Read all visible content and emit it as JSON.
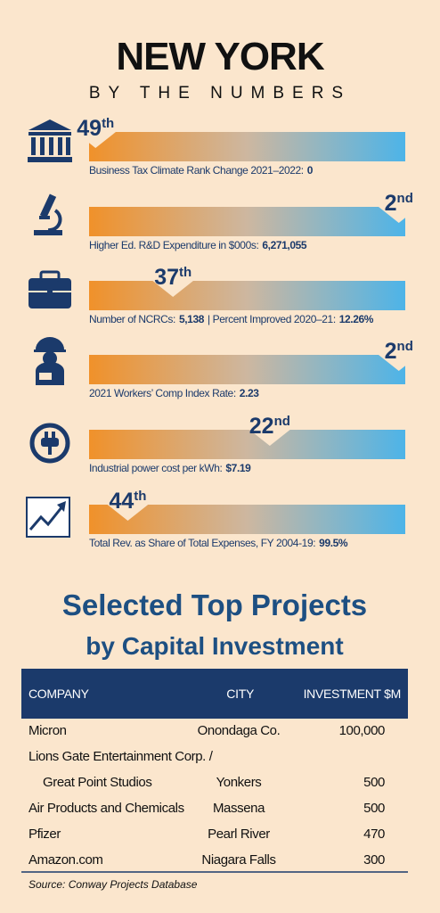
{
  "header": {
    "title": "NEW YORK",
    "subtitle": "BY THE NUMBERS"
  },
  "stats": [
    {
      "rank": 49,
      "suffix": "th",
      "label": "Business Tax Climate Rank Change 2021–2022:",
      "value": "0"
    },
    {
      "rank": 2,
      "suffix": "nd",
      "label": "Higher Ed. R&D Expenditure in $000s:",
      "value": "6,271,055"
    },
    {
      "rank": 37,
      "suffix": "th",
      "label": "Number of NCRCs:",
      "value": "5,138",
      "label2": "| Percent Improved 2020–21:",
      "value2": "12.26%"
    },
    {
      "rank": 2,
      "suffix": "nd",
      "label": "2021 Workers’ Comp Index Rate:",
      "value": "2.23"
    },
    {
      "rank": 22,
      "suffix": "nd",
      "label": "Industrial power cost per kWh:",
      "value": "$7.19"
    },
    {
      "rank": 44,
      "suffix": "th",
      "label": "Total Rev. as Share of Total Expenses, FY 2004-19:",
      "value": "99.5%"
    }
  ],
  "projects": {
    "title": "Selected Top Projects",
    "subtitle": "by Capital Investment",
    "columns": [
      "COMPANY",
      "CITY",
      "INVESTMENT $M"
    ],
    "rows": [
      {
        "company": "Micron",
        "city": "Onondaga Co.",
        "investment": "100,000"
      },
      {
        "company": "Lions Gate Entertainment Corp. /",
        "company_cont": "Great Point Studios",
        "city": "Yonkers",
        "investment": "500"
      },
      {
        "company": "Air Products and Chemicals",
        "city": "Massena",
        "investment": "500"
      },
      {
        "company": "Pfizer",
        "city": "Pearl River",
        "investment": "470"
      },
      {
        "company": "Amazon.com",
        "city": "Niagara Falls",
        "investment": "300"
      }
    ],
    "source": "Source: Conway Projects Database"
  }
}
